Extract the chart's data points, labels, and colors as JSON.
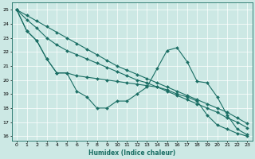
{
  "xlabel": "Humidex (Indice chaleur)",
  "bg_color": "#cce8e4",
  "line_color": "#1a6e64",
  "grid_color": "#ffffff",
  "xlim": [
    -0.5,
    23.5
  ],
  "ylim": [
    15.7,
    25.5
  ],
  "yticks": [
    16,
    17,
    18,
    19,
    20,
    21,
    22,
    23,
    24,
    25
  ],
  "xticks": [
    0,
    1,
    2,
    3,
    4,
    5,
    6,
    7,
    8,
    9,
    10,
    11,
    12,
    13,
    14,
    15,
    16,
    17,
    18,
    19,
    20,
    21,
    22,
    23
  ],
  "series": [
    {
      "x": [
        0,
        1,
        2,
        3,
        4,
        5,
        6,
        7,
        8,
        9,
        10,
        11,
        12,
        13,
        14,
        15,
        16,
        17,
        18,
        19,
        20,
        21,
        22,
        23
      ],
      "y": [
        25.0,
        23.5,
        22.8,
        21.5,
        20.5,
        20.5,
        19.2,
        18.8,
        18.0,
        18.0,
        18.5,
        18.5,
        19.0,
        19.5,
        20.8,
        22.1,
        22.3,
        21.3,
        19.9,
        19.8,
        18.8,
        17.5,
        16.5,
        16.1
      ]
    },
    {
      "x": [
        0,
        1,
        2,
        3,
        4,
        5,
        6,
        7,
        8,
        9,
        10,
        11,
        12,
        13,
        14,
        15,
        16,
        17,
        18,
        19,
        20,
        21,
        22,
        23
      ],
      "y": [
        25.0,
        24.6,
        24.2,
        23.8,
        23.4,
        23.0,
        22.6,
        22.2,
        21.8,
        21.4,
        21.0,
        20.7,
        20.4,
        20.1,
        19.8,
        19.5,
        19.2,
        18.9,
        18.6,
        18.3,
        18.0,
        17.7,
        17.3,
        16.9
      ]
    },
    {
      "x": [
        0,
        1,
        2,
        3,
        4,
        5,
        6,
        7,
        8,
        9,
        10,
        11,
        12,
        13,
        14,
        15,
        16,
        17,
        18,
        19,
        20,
        21,
        22,
        23
      ],
      "y": [
        25.0,
        24.3,
        23.7,
        23.0,
        22.5,
        22.1,
        21.8,
        21.5,
        21.2,
        20.9,
        20.6,
        20.3,
        20.0,
        19.8,
        19.5,
        19.2,
        18.9,
        18.6,
        18.3,
        18.0,
        17.7,
        17.3,
        17.0,
        16.6
      ]
    },
    {
      "x": [
        0,
        1,
        2,
        3,
        4,
        5,
        6,
        7,
        8,
        9,
        10,
        11,
        12,
        13,
        14,
        15,
        16,
        17,
        18,
        19,
        20,
        21,
        22,
        23
      ],
      "y": [
        25.0,
        23.5,
        22.8,
        21.5,
        20.5,
        20.5,
        20.3,
        20.2,
        20.1,
        20.0,
        19.9,
        19.8,
        19.7,
        19.6,
        19.5,
        19.3,
        19.0,
        18.8,
        18.5,
        17.5,
        16.8,
        16.5,
        16.2,
        16.0
      ]
    }
  ]
}
